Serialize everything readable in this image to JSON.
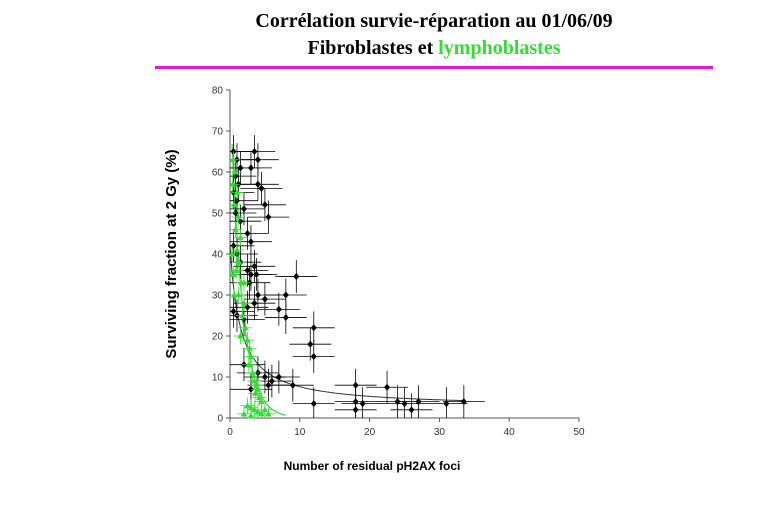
{
  "title": {
    "line1": "Corrélation survie-réparation au 01/06/09",
    "line2_part1": "Fibroblastes et ",
    "line2_part2": "lymphoblastes",
    "colors": {
      "text": "#000000",
      "lymphoblastes": "#33dd33",
      "rule": "#e11ad4"
    }
  },
  "chart_data": {
    "type": "scatter",
    "xlabel": "Number of residual pH2AX foci",
    "ylabel": "Surviving fraction at 2 Gy (%)",
    "xlim": [
      0,
      50
    ],
    "ylim": [
      0,
      80
    ],
    "xticks": [
      "0",
      "10",
      "20",
      "30",
      "40",
      "50"
    ],
    "yticks": [
      "0",
      "10",
      "20",
      "30",
      "40",
      "50",
      "60",
      "70",
      "80"
    ],
    "grid": false,
    "series": [
      {
        "color": "#000000",
        "marker": "diamond",
        "points": [
          [
            0.5,
            65
          ],
          [
            1,
            63
          ],
          [
            1.5,
            61
          ],
          [
            0.8,
            59
          ],
          [
            1.2,
            57
          ],
          [
            3.5,
            65
          ],
          [
            4,
            63
          ],
          [
            3,
            61
          ],
          [
            4,
            57
          ],
          [
            4.5,
            56
          ],
          [
            0.5,
            55
          ],
          [
            1,
            53
          ],
          [
            2,
            51
          ],
          [
            0.8,
            50
          ],
          [
            1.5,
            48
          ],
          [
            5,
            52
          ],
          [
            5.5,
            49
          ],
          [
            2.5,
            45
          ],
          [
            3,
            43
          ],
          [
            0.5,
            42
          ],
          [
            1,
            40
          ],
          [
            1.5,
            38
          ],
          [
            2.5,
            36
          ],
          [
            3,
            35
          ],
          [
            2.8,
            33
          ],
          [
            3.5,
            37
          ],
          [
            3.8,
            35
          ],
          [
            9.5,
            34.5
          ],
          [
            8,
            30
          ],
          [
            4,
            30
          ],
          [
            5,
            29
          ],
          [
            3.5,
            28
          ],
          [
            0.5,
            26
          ],
          [
            1,
            25
          ],
          [
            2,
            24
          ],
          [
            2.5,
            27
          ],
          [
            7,
            26.5
          ],
          [
            8,
            24.5
          ],
          [
            12,
            22
          ],
          [
            11.5,
            18
          ],
          [
            12,
            15
          ],
          [
            2,
            13
          ],
          [
            4,
            11
          ],
          [
            5,
            10
          ],
          [
            5.5,
            8
          ],
          [
            3,
            7
          ],
          [
            9,
            8
          ],
          [
            18,
            8
          ],
          [
            22.5,
            7.5
          ],
          [
            24,
            4
          ],
          [
            25,
            3.5
          ],
          [
            27,
            4
          ],
          [
            31,
            3.5
          ],
          [
            33.5,
            4
          ],
          [
            18,
            4
          ],
          [
            19,
            3.5
          ],
          [
            12,
            3.5
          ],
          [
            18,
            2
          ],
          [
            26,
            2
          ],
          [
            6,
            9
          ],
          [
            7,
            10
          ]
        ],
        "x_err": 3,
        "y_err": 4
      },
      {
        "color": "#33dd33",
        "marker": "triangle",
        "points": [
          [
            0.5,
            63
          ],
          [
            0.7,
            60
          ],
          [
            0.4,
            57
          ],
          [
            1,
            55
          ],
          [
            0.6,
            52
          ],
          [
            1.2,
            49
          ],
          [
            0.8,
            46
          ],
          [
            1.5,
            44
          ],
          [
            1,
            41
          ],
          [
            1.3,
            38
          ],
          [
            0.9,
            36
          ],
          [
            1.6,
            33
          ],
          [
            1.2,
            30
          ],
          [
            2,
            28
          ],
          [
            1.8,
            25
          ],
          [
            2.2,
            22
          ],
          [
            2.5,
            19
          ],
          [
            2.8,
            17
          ],
          [
            3,
            15
          ],
          [
            2.7,
            13
          ],
          [
            3.2,
            11
          ],
          [
            3.5,
            9
          ],
          [
            3.8,
            8
          ],
          [
            4,
            7
          ],
          [
            3.6,
            6
          ],
          [
            4.2,
            5
          ],
          [
            4.5,
            4
          ],
          [
            2.5,
            3
          ],
          [
            3,
            2.5
          ],
          [
            3.5,
            2
          ],
          [
            4,
            1.5
          ],
          [
            4.5,
            1
          ],
          [
            2,
            1
          ],
          [
            3,
            0.5
          ],
          [
            5,
            2
          ],
          [
            5.5,
            1
          ],
          [
            0.3,
            40
          ],
          [
            0.5,
            35
          ],
          [
            0.6,
            30
          ],
          [
            2,
            33
          ],
          [
            1.5,
            20
          ]
        ],
        "x_err": 1,
        "y_err": 2
      }
    ],
    "fit_curves": [
      {
        "color": "#333333",
        "formula": "y = 57.5 / (x + 1.45) + 2.6"
      },
      {
        "color": "#33dd33",
        "formula": "y = 80 * exp(-0.6 * x)"
      }
    ]
  }
}
